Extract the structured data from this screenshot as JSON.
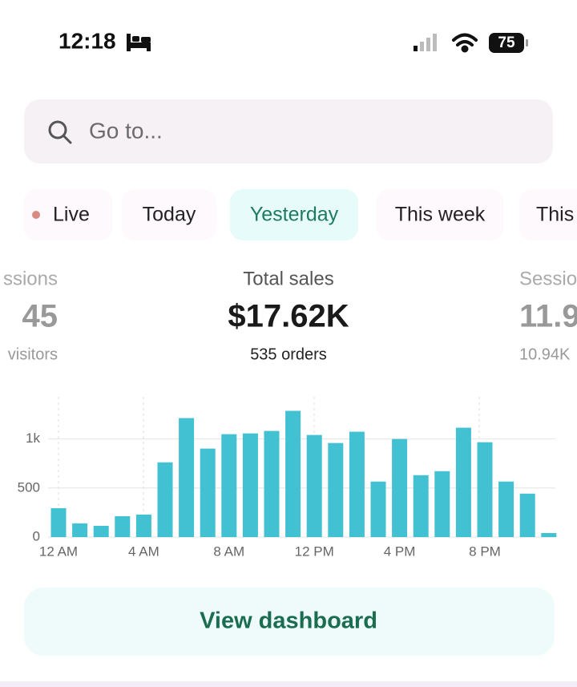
{
  "status_bar": {
    "time": "12:18",
    "battery": "75"
  },
  "search": {
    "placeholder": "Go to..."
  },
  "tabs": [
    "Live",
    "Today",
    "Yesterday",
    "This week",
    "This"
  ],
  "selected_tab": 2,
  "metrics": [
    {
      "label": "ssions",
      "value": "45",
      "sub": "visitors"
    },
    {
      "label": "Total sales",
      "value": "$17.62K",
      "sub": "535 orders"
    },
    {
      "label": "Sessio",
      "value": "11.9",
      "sub": "10.94K"
    }
  ],
  "chart_data": {
    "type": "bar",
    "categories": [
      "12 AM",
      null,
      null,
      null,
      "4 AM",
      null,
      null,
      null,
      "8 AM",
      null,
      null,
      null,
      "12 PM",
      null,
      null,
      null,
      "4 PM",
      null,
      null,
      null,
      "8 PM",
      null,
      null,
      null
    ],
    "values": [
      295,
      140,
      115,
      213,
      230,
      762,
      1213,
      902,
      1049,
      1057,
      1082,
      1287,
      1041,
      959,
      1074,
      566,
      1000,
      631,
      672,
      1115,
      967,
      566,
      443,
      41
    ],
    "color": "#42c1d2",
    "ylim": [
      0,
      1430
    ],
    "yticks": [
      0,
      500,
      {
        "value": 1000,
        "label": "1k"
      }
    ],
    "grid": true
  },
  "button": {
    "label": "View dashboard"
  }
}
